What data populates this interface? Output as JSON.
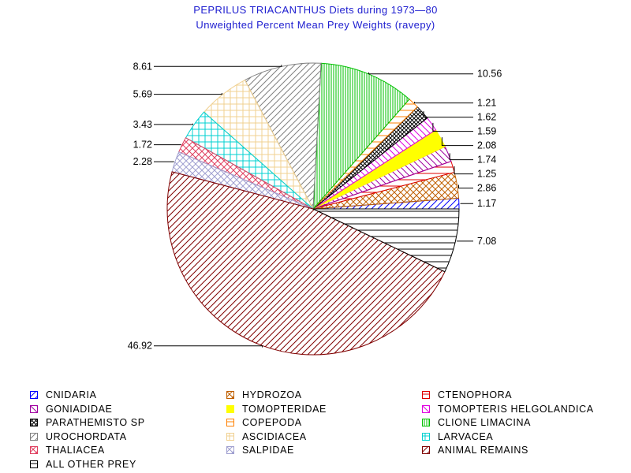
{
  "chart_data": {
    "type": "pie",
    "title": "PEPRILUS TRIACANTHUS Diets during 1973—80",
    "subtitle": "Unweighted Percent Mean Prey Weights (ravepy)",
    "slices": [
      {
        "label": "CNIDARIA",
        "value": 1.17,
        "color": "#0000ff",
        "pattern": "diag-up"
      },
      {
        "label": "HYDROZOA",
        "value": 2.86,
        "color": "#c06000",
        "pattern": "cross-diag"
      },
      {
        "label": "CTENOPHORA",
        "value": 1.25,
        "color": "#e00000",
        "pattern": "horizontal"
      },
      {
        "label": "GONIADIDAE",
        "value": 1.74,
        "color": "#a000a0",
        "pattern": "diag-down"
      },
      {
        "label": "TOMOPTERIDAE",
        "value": 2.08,
        "color": "#ffff00",
        "pattern": "solid"
      },
      {
        "label": "TOMOPTERIS HELGOLANDICA",
        "value": 1.59,
        "color": "#e000e0",
        "pattern": "diag-down"
      },
      {
        "label": "PARATHEMISTO SP",
        "value": 1.62,
        "color": "#000000",
        "pattern": "cross-diag-dense"
      },
      {
        "label": "COPEPODA",
        "value": 1.21,
        "color": "#ff8000",
        "pattern": "horizontal"
      },
      {
        "label": "CLIONE LIMACINA",
        "value": 10.56,
        "color": "#00c000",
        "pattern": "vertical"
      },
      {
        "label": "UROCHORDATA",
        "value": 8.61,
        "color": "#808080",
        "pattern": "diag-up"
      },
      {
        "label": "ASCIDIACEA",
        "value": 5.69,
        "color": "#f0d090",
        "pattern": "grid"
      },
      {
        "label": "LARVACEA",
        "value": 3.43,
        "color": "#00d0d0",
        "pattern": "grid"
      },
      {
        "label": "THALIACEA",
        "value": 1.72,
        "color": "#e04060",
        "pattern": "cross-diag"
      },
      {
        "label": "SALPIDAE",
        "value": 2.28,
        "color": "#a0a0d0",
        "pattern": "cross-diag"
      },
      {
        "label": "ANIMAL REMAINS",
        "value": 46.92,
        "color": "#800000",
        "pattern": "diag-up"
      },
      {
        "label": "ALL OTHER PREY",
        "value": 7.08,
        "color": "#000000",
        "pattern": "horizontal"
      }
    ],
    "value_labels": [
      "1.17",
      "2.86",
      "1.25",
      "1.74",
      "2.08",
      "1.59",
      "1.62",
      "1.21",
      "10.56",
      "8.61",
      "5.69",
      "3.43",
      "1.72",
      "2.28",
      "46.92",
      "7.08"
    ],
    "legend_position": "bottom"
  }
}
